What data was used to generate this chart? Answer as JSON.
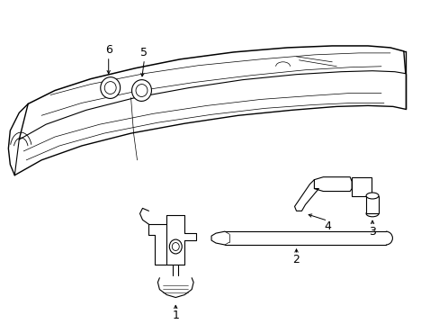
{
  "bg_color": "#ffffff",
  "line_color": "#000000",
  "fig_width": 4.89,
  "fig_height": 3.6,
  "dpi": 100,
  "label_fontsize": 9,
  "lw": 0.8
}
